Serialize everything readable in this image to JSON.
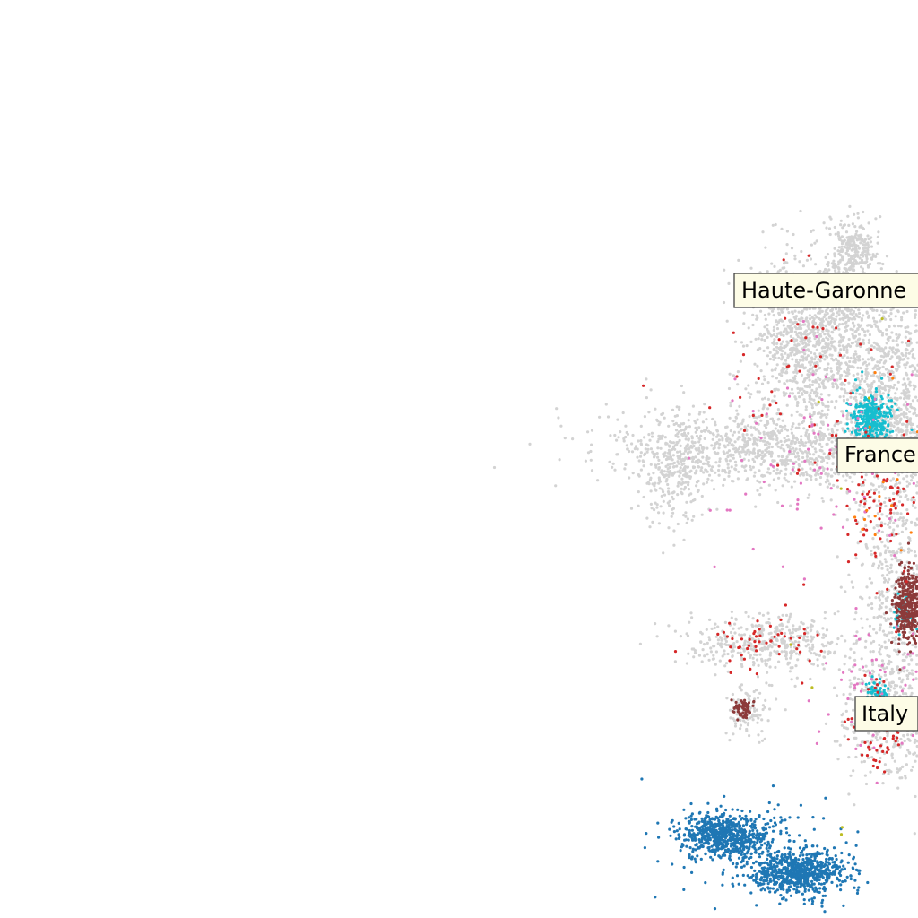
{
  "chart_data": {
    "type": "scatter",
    "title": "",
    "xlabel": "",
    "ylabel": "",
    "xlim": [
      0,
      1
    ],
    "ylim": [
      0,
      1
    ],
    "grid": false,
    "axes_visible": false,
    "labels": [
      {
        "text": "Haute-Garonne",
        "x": 0.9,
        "y": 0.685
      },
      {
        "text": "France",
        "x": 0.96,
        "y": 0.505
      },
      {
        "text": "Italy",
        "x": 0.965,
        "y": 0.222
      }
    ],
    "series": [
      {
        "color": "#d3d3d3",
        "count": 5200,
        "clusters": [
          {
            "x": 0.88,
            "y": 0.63,
            "sx": 0.035,
            "sy": 0.045,
            "w": 0.2
          },
          {
            "x": 0.92,
            "y": 0.69,
            "sx": 0.012,
            "sy": 0.03,
            "w": 0.06
          },
          {
            "x": 0.935,
            "y": 0.73,
            "sx": 0.012,
            "sy": 0.015,
            "w": 0.03
          },
          {
            "x": 0.85,
            "y": 0.51,
            "sx": 0.09,
            "sy": 0.02,
            "w": 0.2
          },
          {
            "x": 0.735,
            "y": 0.49,
            "sx": 0.02,
            "sy": 0.03,
            "w": 0.05
          },
          {
            "x": 0.97,
            "y": 0.56,
            "sx": 0.03,
            "sy": 0.06,
            "w": 0.2
          },
          {
            "x": 0.975,
            "y": 0.36,
            "sx": 0.02,
            "sy": 0.05,
            "w": 0.07
          },
          {
            "x": 0.835,
            "y": 0.3,
            "sx": 0.045,
            "sy": 0.015,
            "w": 0.08
          },
          {
            "x": 0.815,
            "y": 0.225,
            "sx": 0.012,
            "sy": 0.015,
            "w": 0.02
          },
          {
            "x": 0.97,
            "y": 0.225,
            "sx": 0.025,
            "sy": 0.04,
            "w": 0.09
          }
        ]
      },
      {
        "color": "#1f77b4",
        "count": 1500,
        "clusters": [
          {
            "x": 0.79,
            "y": 0.09,
            "sx": 0.025,
            "sy": 0.012,
            "w": 0.45
          },
          {
            "x": 0.87,
            "y": 0.05,
            "sx": 0.025,
            "sy": 0.012,
            "w": 0.45
          },
          {
            "x": 0.84,
            "y": 0.07,
            "sx": 0.05,
            "sy": 0.03,
            "w": 0.1
          }
        ]
      },
      {
        "color": "#17becf",
        "count": 420,
        "clusters": [
          {
            "x": 0.95,
            "y": 0.545,
            "sx": 0.012,
            "sy": 0.015,
            "w": 0.75
          },
          {
            "x": 0.955,
            "y": 0.245,
            "sx": 0.006,
            "sy": 0.008,
            "w": 0.15
          },
          {
            "x": 0.985,
            "y": 0.33,
            "sx": 0.006,
            "sy": 0.01,
            "w": 0.1
          }
        ]
      },
      {
        "color": "#8c3a3a",
        "count": 420,
        "clusters": [
          {
            "x": 0.99,
            "y": 0.34,
            "sx": 0.008,
            "sy": 0.02,
            "w": 0.85
          },
          {
            "x": 0.81,
            "y": 0.228,
            "sx": 0.006,
            "sy": 0.006,
            "w": 0.15
          }
        ]
      },
      {
        "color": "#d62728",
        "count": 260,
        "clusters": [
          {
            "x": 0.96,
            "y": 0.45,
            "sx": 0.03,
            "sy": 0.04,
            "w": 0.35
          },
          {
            "x": 0.955,
            "y": 0.21,
            "sx": 0.015,
            "sy": 0.03,
            "w": 0.25
          },
          {
            "x": 0.83,
            "y": 0.3,
            "sx": 0.03,
            "sy": 0.015,
            "w": 0.2
          },
          {
            "x": 0.88,
            "y": 0.6,
            "sx": 0.05,
            "sy": 0.05,
            "w": 0.2
          }
        ]
      },
      {
        "color": "#e377c2",
        "count": 150,
        "clusters": [
          {
            "x": 0.9,
            "y": 0.5,
            "sx": 0.06,
            "sy": 0.05,
            "w": 0.6
          },
          {
            "x": 0.95,
            "y": 0.25,
            "sx": 0.03,
            "sy": 0.04,
            "w": 0.4
          }
        ]
      },
      {
        "color": "#ff7f0e",
        "count": 25,
        "clusters": [
          {
            "x": 0.96,
            "y": 0.47,
            "sx": 0.02,
            "sy": 0.05,
            "w": 1
          }
        ]
      },
      {
        "color": "#bcbd22",
        "count": 8,
        "clusters": [
          {
            "x": 0.89,
            "y": 0.42,
            "sx": 0.05,
            "sy": 0.15,
            "w": 1
          }
        ]
      }
    ]
  }
}
